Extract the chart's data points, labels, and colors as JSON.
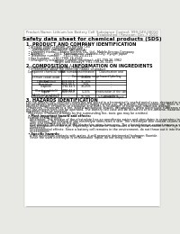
{
  "bg_color": "#e8e8e4",
  "page_bg": "#ffffff",
  "title": "Safety data sheet for chemical products (SDS)",
  "header_left": "Product Name: Lithium Ion Battery Cell",
  "header_right_line1": "Substance Control: 999-049-00010",
  "header_right_line2": "Established / Revision: Dec.7.2010",
  "section1_title": "1. PRODUCT AND COMPANY IDENTIFICATION",
  "section1_items": [
    "  • Product name: Lithium Ion Battery Cell",
    "  • Product code: Cylindrical-type cell",
    "      (UR18650U, UR18650Z, UR18650A)",
    "  • Company name:    Sanyo Electric Co., Ltd., Mobile Energy Company",
    "  • Address:          2001, Kamikamachi, Sumoto-City, Hyogo, Japan",
    "  • Telephone number:   +81-(799)-20-4111",
    "  • Fax number:   +81-(799)-26-4129",
    "  • Emergency telephone number (daytime): +81-799-26-3962",
    "                            (Night and holiday): +81-799-26-3101"
  ],
  "section2_title": "2. COMPOSITION / INFORMATION ON INGREDIENTS",
  "section2_sub": "  • Substance or preparation: Preparation",
  "section2_sub2": "  • Information about the chemical nature of product:",
  "table_col_headers": [
    "Component chemical name",
    "CAS number",
    "Concentration /\nConcentration range",
    "Classification and\nhazard labeling"
  ],
  "table_rows": [
    [
      "Lithium cobalt oxide\n(LiMn/CoO3(x))",
      "-",
      "30-60%",
      "-"
    ],
    [
      "Iron",
      "7439-89-6",
      "15-25%",
      "-"
    ],
    [
      "Aluminium",
      "7429-90-5",
      "2-5%",
      "-"
    ],
    [
      "Graphite\n(Hard graphite1)\n(Artificial graphite1)",
      "7782-42-5\n7782-42-5",
      "10-25%",
      "-"
    ],
    [
      "Copper",
      "7440-50-8",
      "5-15%",
      "Sensitization of the skin\ngroup No.2"
    ],
    [
      "Organic electrolyte",
      "-",
      "10-20%",
      "Inflammable liquid"
    ]
  ],
  "section3_title": "3. HAZARDS IDENTIFICATION",
  "section3_lines": [
    "For the battery cell, chemical materials are stored in a hermetically sealed metal case, designed to withstand",
    "temperatures and pressures encountered during normal use. As a result, during normal use, there is no",
    "physical danger of ignition or explosion and there is no danger of hazardous materials leakage.",
    "  However, if exposed to a fire, added mechanical shocks, decomposes, when electrolytic substance may issue,",
    "the gas release vent can be operated. The battery cell case will be breached of fire-defame, hazardous",
    "materials may be released.",
    "  Moreover, if heated strongly by the surrounding fire, toxic gas may be emitted."
  ],
  "section3_sub1": "  • Most important hazard and effects:",
  "section3_sub1_lines": [
    "Human health effects:",
    "  Inhalation: The release of the electrolyte has an anesthesia action and stimulates in respiratory tract.",
    "  Skin contact: The release of the electrolyte stimulates a skin. The electrolyte skin contact causes a",
    "  sore and stimulation on the skin.",
    "  Eye contact: The release of the electrolyte stimulates eyes. The electrolyte eye contact causes a sore",
    "  and stimulation on the eye. Especially, a substance that causes a strong inflammation of the eye is",
    "  contained.",
    "  Environmental effects: Since a battery cell remains in the environment, do not throw out it into the",
    "  environment."
  ],
  "section3_sub2": "  • Specific hazards:",
  "section3_sub2_lines": [
    "  If the electrolyte contacts with water, it will generate detrimental hydrogen fluoride.",
    "  Since the used electrolyte is inflammable liquid, do not bring close to fire."
  ],
  "fs_header": 2.8,
  "fs_title": 4.2,
  "fs_section": 3.5,
  "fs_body": 2.4,
  "fs_table": 2.2
}
